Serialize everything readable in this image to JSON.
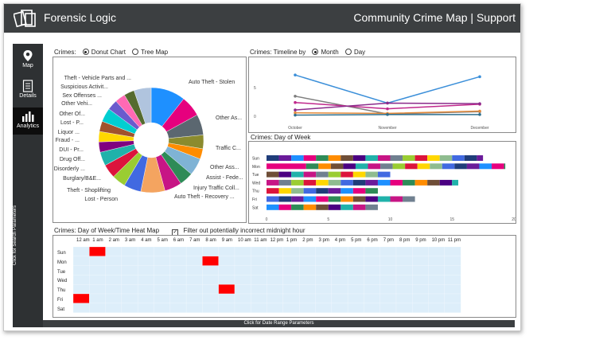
{
  "app": {
    "name": "Forensic Logic",
    "page_title": "Community Crime Map | Support"
  },
  "sidebar": {
    "items": [
      {
        "label": "Map",
        "icon": "map-pin-icon"
      },
      {
        "label": "Details",
        "icon": "document-icon"
      },
      {
        "label": "Analytics",
        "icon": "bar-chart-icon"
      }
    ],
    "search_toggle": "Click for Search Parameters"
  },
  "bottom_toggle": "Click for Date Range Parameters",
  "crimes_panel": {
    "prefix": "Crimes:",
    "options": [
      {
        "label": "Donut Chart",
        "selected": true
      },
      {
        "label": "Tree Map",
        "selected": false
      }
    ]
  },
  "timeline_panel": {
    "prefix": "Crimes: Timeline by",
    "options": [
      {
        "label": "Month",
        "selected": true
      },
      {
        "label": "Day",
        "selected": false
      }
    ]
  },
  "dow_panel": {
    "title": "Crimes: Day of Week"
  },
  "heatmap_panel": {
    "title": "Crimes: Day of Week/Time Heat Map",
    "filter_label": "Filter out potentially incorrect midnight hour",
    "filter_checked": true
  },
  "chart_data": [
    {
      "type": "pie",
      "subtype": "donut",
      "slice_labels": [
        "Auto Theft - Stolen",
        "Other As...",
        "Traffic C...",
        "Other Ass...",
        "Assist - Fede...",
        "Injury Traffic Coll...",
        "Auto Theft - Recovery ...",
        "Lost - Person",
        "Theft - Shoplifting",
        "Burglary/B&E...",
        "Disorderly ...",
        "Drug Off...",
        "DUI - Pr...",
        "Fraud - ...",
        "Liquor ...",
        "Lost - P...",
        "Other Of...",
        "Other Vehi...",
        "Sex Offenses ...",
        "Suspicious Activit...",
        "Theft - Vehicle Parts and ..."
      ],
      "slice_colors": [
        "#1e90ff",
        "#e6007e",
        "#5b6770",
        "#8b8b2e",
        "#ff8c00",
        "#7fb3d5",
        "#2e8b57",
        "#c71585",
        "#f4a460",
        "#4169e1",
        "#9acd32",
        "#dc143c",
        "#20b2aa",
        "#800080",
        "#ffd700",
        "#a0522d",
        "#00ced1",
        "#6a5acd",
        "#ff69b4",
        "#556b2f",
        "#b0c4de"
      ]
    },
    {
      "type": "line",
      "categories": [
        "October",
        "November",
        "December"
      ],
      "yticks": [
        5,
        0
      ],
      "series": [
        {
          "color": "#3b8fd9",
          "values": [
            7.2,
            2.3,
            6.9
          ]
        },
        {
          "color": "#7f7f7f",
          "values": [
            3.5,
            0.4,
            0.8
          ]
        },
        {
          "color": "#c0288c",
          "values": [
            2.4,
            1.3,
            2.1
          ]
        },
        {
          "color": "#8b2b8b",
          "values": [
            1.1,
            2.3,
            2.2
          ]
        },
        {
          "color": "#e48a3a",
          "values": [
            0.6,
            0.5,
            0.9
          ]
        },
        {
          "color": "#2e6f8e",
          "values": [
            0.2,
            0.3,
            0.3
          ]
        }
      ]
    },
    {
      "type": "bar",
      "orientation": "horizontal",
      "stacked": true,
      "categories": [
        "Sun",
        "Mon",
        "Tue",
        "Wed",
        "Thu",
        "Fri",
        "Sat"
      ],
      "totals": [
        17.5,
        19.3,
        10,
        15.5,
        9,
        12,
        9
      ],
      "xticks": [
        0,
        5,
        10,
        15,
        20
      ],
      "xlim": [
        0,
        20
      ]
    },
    {
      "type": "heatmap",
      "hours": [
        "12 am",
        "1 am",
        "2 am",
        "3 am",
        "4 am",
        "5 am",
        "6 am",
        "7 am",
        "8 am",
        "9 am",
        "10 am",
        "11 am",
        "12 pm",
        "1 pm",
        "2 pm",
        "3 pm",
        "4 pm",
        "5 pm",
        "6 pm",
        "7 pm",
        "8 pm",
        "9 pm",
        "10 pm",
        "11 pm"
      ],
      "days": [
        "Sun",
        "Mon",
        "Tue",
        "Wed",
        "Thu",
        "Fri",
        "Sat"
      ],
      "hot_cells": [
        {
          "day": "Sun",
          "hour": "1 am"
        },
        {
          "day": "Mon",
          "hour": "8 am"
        },
        {
          "day": "Thu",
          "hour": "9 am"
        },
        {
          "day": "Fri",
          "hour": "12 am"
        }
      ],
      "hot_color": "#ff0000",
      "cold_color": "#ddeefa"
    }
  ],
  "colors": {
    "titlebar": "#3c3f41",
    "sidebar": "#2e3133",
    "accent": "#1e90ff"
  }
}
